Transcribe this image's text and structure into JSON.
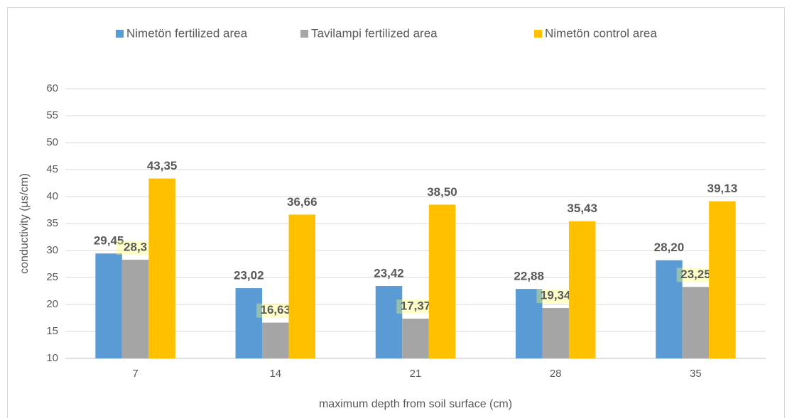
{
  "chart_data": {
    "type": "bar",
    "x_label": "maximum depth from soil surface (cm)",
    "y_label": "conductivity (µs/cm)",
    "categories": [
      "7",
      "14",
      "21",
      "28",
      "35"
    ],
    "series": [
      {
        "name": "Nimetön fertilized area",
        "color": "#5b9bd5",
        "values": [
          29.45,
          23.02,
          23.42,
          22.88,
          28.2
        ],
        "value_labels": [
          "29,45",
          "23,02",
          "23,42",
          "22,88",
          "28,20"
        ]
      },
      {
        "name": "Tavilampi fertilized area",
        "color": "#a5a5a5",
        "values": [
          28.3,
          16.63,
          17.37,
          19.34,
          23.25
        ],
        "value_labels": [
          "28,3",
          "16,63",
          "17,37",
          "19,34",
          "23,25"
        ]
      },
      {
        "name": "Nimetön control area",
        "color": "#ffc000",
        "values": [
          43.35,
          36.66,
          38.5,
          35.43,
          39.13
        ],
        "value_labels": [
          "43,35",
          "36,66",
          "38,50",
          "35,43",
          "39,13"
        ]
      }
    ],
    "ylim": [
      10,
      60
    ],
    "yticks": [
      10,
      15,
      20,
      25,
      30,
      35,
      40,
      45,
      50,
      55,
      60
    ],
    "grid": true,
    "legend": "top"
  }
}
